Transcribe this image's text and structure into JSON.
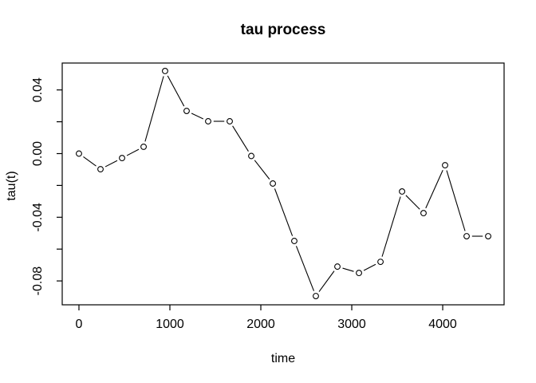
{
  "chart_data": {
    "type": "line",
    "title": "tau process",
    "xlabel": "time",
    "ylabel": "tau(t)",
    "marker": "open-circle",
    "line_style": "segments-with-gaps-at-points",
    "legend": "none",
    "grid": false,
    "color": "#000000",
    "background": "#ffffff",
    "xlim": [
      -184,
      4675
    ],
    "ylim": [
      -0.095,
      0.0569
    ],
    "x": [
      0,
      237,
      474,
      711,
      947,
      1184,
      1421,
      1658,
      1895,
      2132,
      2368,
      2605,
      2842,
      3079,
      3316,
      3553,
      3789,
      4026,
      4263,
      4500
    ],
    "y": [
      0.0,
      -0.0098,
      -0.0028,
      0.0043,
      0.0519,
      0.0268,
      0.0203,
      0.0203,
      -0.0015,
      -0.0188,
      -0.0549,
      -0.0895,
      -0.071,
      -0.075,
      -0.068,
      -0.0238,
      -0.0374,
      -0.0073,
      -0.0519,
      -0.0519
    ],
    "x_ticks": [
      {
        "value": 0,
        "label": "0"
      },
      {
        "value": 1000,
        "label": "1000"
      },
      {
        "value": 2000,
        "label": "2000"
      },
      {
        "value": 3000,
        "label": "3000"
      },
      {
        "value": 4000,
        "label": "4000"
      }
    ],
    "y_ticks": [
      {
        "value": 0.04,
        "label": "0.04"
      },
      {
        "value": 0.02,
        "label": ""
      },
      {
        "value": 0.0,
        "label": "0.00"
      },
      {
        "value": -0.02,
        "label": ""
      },
      {
        "value": -0.04,
        "label": "-0.04"
      },
      {
        "value": -0.06,
        "label": ""
      },
      {
        "value": -0.08,
        "label": "-0.08"
      }
    ]
  }
}
